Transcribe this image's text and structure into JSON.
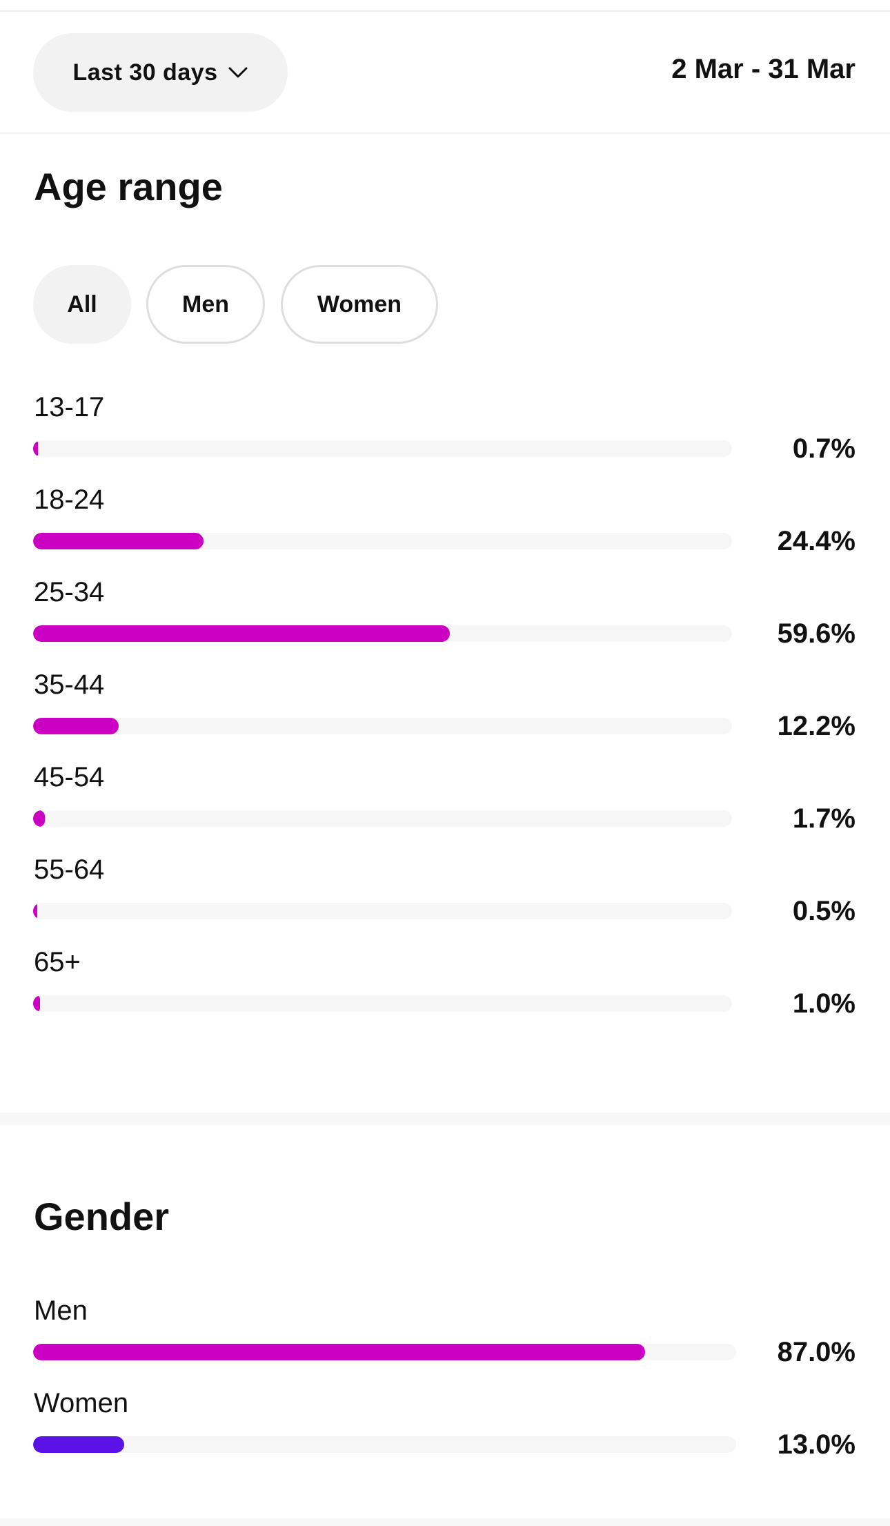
{
  "header": {
    "range_label": "Last 30 days",
    "date_range": "2 Mar - 31 Mar"
  },
  "age": {
    "title": "Age range",
    "filters": [
      "All",
      "Men",
      "Women"
    ],
    "active_filter": "All",
    "rows": [
      {
        "label": "13-17",
        "value": 0.7,
        "display": "0.7%"
      },
      {
        "label": "18-24",
        "value": 24.4,
        "display": "24.4%"
      },
      {
        "label": "25-34",
        "value": 59.6,
        "display": "59.6%"
      },
      {
        "label": "35-44",
        "value": 12.2,
        "display": "12.2%"
      },
      {
        "label": "45-54",
        "value": 1.7,
        "display": "1.7%"
      },
      {
        "label": "55-64",
        "value": 0.5,
        "display": "0.5%"
      },
      {
        "label": "65+",
        "value": 1.0,
        "display": "1.0%"
      }
    ]
  },
  "gender": {
    "title": "Gender",
    "rows": [
      {
        "label": "Men",
        "value": 87.0,
        "display": "87.0%"
      },
      {
        "label": "Women",
        "value": 13.0,
        "display": "13.0%"
      }
    ]
  },
  "colors": {
    "magenta": "#cc00c2",
    "purple": "#5a12e6",
    "track": "#f6f6f7"
  },
  "icons": {
    "range_dropdown": "chevron-down-icon"
  }
}
